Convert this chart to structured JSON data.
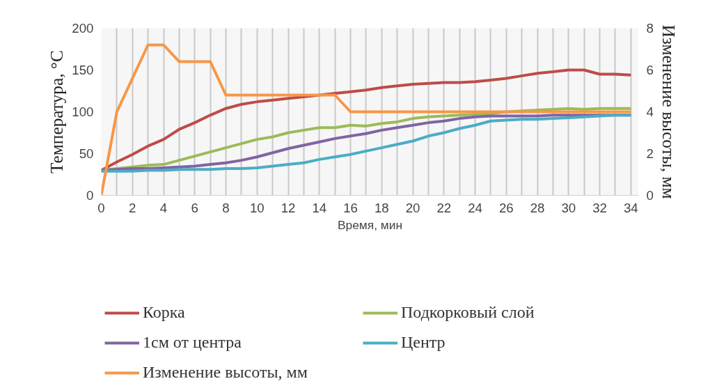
{
  "chart_data": {
    "type": "line",
    "xlabel": "Время, мин",
    "ylabel": "Температура, °C",
    "y2label": "Изменение высоты, мм",
    "x": [
      0,
      1,
      2,
      3,
      4,
      5,
      6,
      7,
      8,
      9,
      10,
      11,
      12,
      13,
      14,
      15,
      16,
      17,
      18,
      19,
      20,
      21,
      22,
      23,
      24,
      25,
      26,
      27,
      28,
      29,
      30,
      31,
      32,
      33,
      34
    ],
    "series": [
      {
        "name": "Корка",
        "color": "#be4b48",
        "values": [
          30,
          40,
          49,
          59,
          67,
          79,
          87,
          96,
          104,
          109,
          112,
          114,
          116,
          118,
          120,
          122,
          124,
          126,
          129,
          131,
          133,
          134,
          135,
          135,
          136,
          138,
          140,
          143,
          146,
          148,
          150,
          150,
          145,
          145,
          144
        ]
      },
      {
        "name": "Подкорковый слой",
        "color": "#9bbb59",
        "values": [
          30,
          32,
          34,
          36,
          37,
          42,
          47,
          52,
          57,
          62,
          67,
          70,
          75,
          78,
          81,
          81,
          84,
          83,
          86,
          88,
          92,
          94,
          95,
          96,
          97,
          98,
          100,
          101,
          102,
          103,
          104,
          103,
          104,
          104,
          104
        ]
      },
      {
        "name": "1см от центра",
        "color": "#8064a2",
        "values": [
          30,
          31,
          32,
          32,
          33,
          34,
          35,
          37,
          39,
          42,
          46,
          51,
          56,
          60,
          64,
          68,
          71,
          74,
          78,
          81,
          84,
          87,
          89,
          92,
          94,
          95,
          95,
          95,
          95,
          96,
          96,
          96,
          96,
          96,
          96
        ]
      },
      {
        "name": "Центр",
        "color": "#4bacc6",
        "values": [
          29,
          29,
          29,
          30,
          30,
          31,
          31,
          31,
          32,
          32,
          33,
          35,
          37,
          39,
          43,
          46,
          49,
          53,
          57,
          61,
          65,
          71,
          75,
          80,
          84,
          89,
          90,
          91,
          91,
          92,
          93,
          94,
          95,
          96,
          96
        ]
      },
      {
        "name": "Изменение высоты, мм",
        "color": "#f79646",
        "axis": "y2",
        "values": [
          0,
          4,
          5.6,
          7.2,
          7.2,
          6.4,
          6.4,
          6.4,
          4.8,
          4.8,
          4.8,
          4.8,
          4.8,
          4.8,
          4.8,
          4.8,
          4.0,
          4.0,
          4.0,
          4.0,
          4.0,
          4.0,
          4.0,
          4.0,
          4.0,
          4.0,
          4.0,
          4.0,
          4.0,
          4.0,
          4.0,
          4.0,
          4.0,
          4.0,
          4.0
        ]
      }
    ],
    "xlim": [
      0,
      34.5
    ],
    "xticks": [
      0,
      {
        "value": 1,
        "label": null
      },
      2,
      {
        "value": 3,
        "label": null
      },
      4,
      {
        "value": 5,
        "label": null
      },
      6,
      {
        "value": 7,
        "label": null
      },
      8,
      {
        "value": 9,
        "label": null
      },
      10,
      {
        "value": 11,
        "label": null
      },
      12,
      {
        "value": 13,
        "label": null
      },
      14,
      {
        "value": 15,
        "label": null
      },
      16,
      {
        "value": 17,
        "label": null
      },
      18,
      {
        "value": 19,
        "label": null
      },
      20,
      {
        "value": 21,
        "label": null
      },
      22,
      {
        "value": 23,
        "label": null
      },
      24,
      {
        "value": 25,
        "label": null
      },
      26,
      {
        "value": 27,
        "label": null
      },
      28,
      {
        "value": 29,
        "label": null
      },
      30,
      {
        "value": 31,
        "label": null
      },
      32,
      {
        "value": 33,
        "label": null
      },
      34
    ],
    "ylim": [
      0,
      200
    ],
    "yticks": [
      0,
      50,
      100,
      150,
      200
    ],
    "y2lim": [
      0,
      8
    ],
    "y2ticks": [
      0,
      2,
      4,
      6,
      8
    ],
    "grid": "x",
    "legend": "bottom",
    "marker": "none",
    "line_style": "solid"
  }
}
